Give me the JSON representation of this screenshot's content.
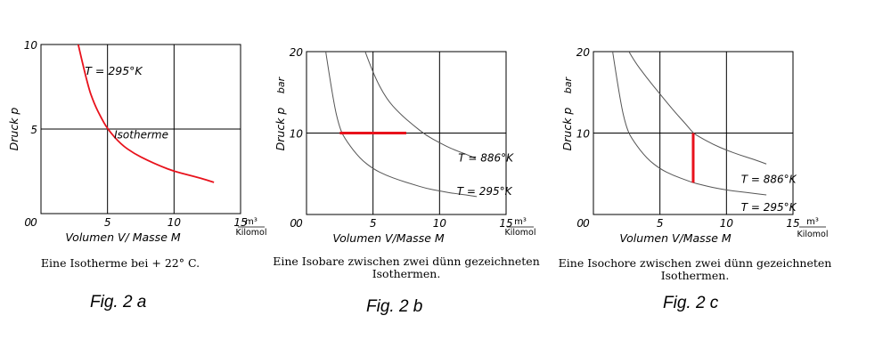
{
  "colors": {
    "highlight": "#e8121c",
    "thin_curve": "#555555",
    "axis": "#000000"
  },
  "chart_data": [
    {
      "type": "line",
      "title": "",
      "xlabel": "Volumen V/ Masse M",
      "ylabel": "Druck p",
      "unit": {
        "numerator": "m³",
        "denominator": "Kilomol"
      },
      "xlim": [
        0,
        15
      ],
      "ylim": [
        0,
        10
      ],
      "xticks": [
        "0",
        "5",
        "10",
        "15"
      ],
      "yticks": [
        "10",
        "5",
        "0"
      ],
      "grid": true,
      "series": [
        {
          "name": "Isotherme",
          "color": "#e8121c",
          "label": "T = 295°K",
          "x": [
            2.8,
            3.5,
            4.0,
            4.5,
            5.0,
            6.0,
            7.0,
            8.0,
            9.0,
            10.0,
            11.0,
            12.0,
            13.0
          ],
          "y": [
            10.0,
            7.6,
            6.5,
            5.7,
            5.0,
            4.1,
            3.55,
            3.15,
            2.8,
            2.5,
            2.3,
            2.1,
            1.85
          ]
        }
      ],
      "annotations": [
        "T = 295°K",
        "Isotherme"
      ]
    },
    {
      "type": "line",
      "title": "",
      "xlabel": "Volumen V/Masse M",
      "ylabel": "Druck p",
      "yunit": "bar",
      "unit": {
        "numerator": "m³",
        "denominator": "Kilomol"
      },
      "xlim": [
        0,
        15
      ],
      "ylim": [
        0,
        20
      ],
      "xticks": [
        "0",
        "5",
        "10",
        "15"
      ],
      "yticks": [
        "20",
        "10",
        "0"
      ],
      "grid": true,
      "series": [
        {
          "name": "T = 886°K",
          "x": [
            4.3,
            5.0,
            6.0,
            7.0,
            8.0,
            9.0,
            10.0,
            11.0,
            12.0,
            12.7
          ],
          "y": [
            20.5,
            17.3,
            14.2,
            12.4,
            11.0,
            9.7,
            8.8,
            8.0,
            7.4,
            6.9
          ]
        },
        {
          "name": "T = 295°K",
          "x": [
            1.4,
            2.0,
            2.5,
            3.0,
            4.0,
            5.0,
            6.0,
            7.0,
            8.0,
            9.0,
            10.0,
            11.0,
            12.0,
            12.8
          ],
          "y": [
            20.5,
            14.0,
            10.5,
            9.0,
            6.9,
            5.6,
            4.8,
            4.2,
            3.7,
            3.2,
            2.9,
            2.6,
            2.4,
            2.2
          ]
        },
        {
          "name": "Isobare",
          "color": "#e8121c",
          "x": [
            2.5,
            7.5
          ],
          "y": [
            10,
            10
          ]
        }
      ],
      "annotations": [
        "T = 886°K",
        "T = 295°K"
      ]
    },
    {
      "type": "line",
      "title": "",
      "xlabel": "Volumen V/Masse M",
      "ylabel": "Druck p",
      "yunit": "bar",
      "unit": {
        "numerator": "m³",
        "denominator": "Kilomol"
      },
      "xlim": [
        0,
        15
      ],
      "ylim": [
        0,
        20
      ],
      "xticks": [
        "0",
        "5",
        "10",
        "15"
      ],
      "yticks": [
        "20",
        "10",
        "0"
      ],
      "grid": true,
      "series": [
        {
          "name": "T = 886°K",
          "x": [
            2.5,
            3.0,
            4.0,
            5.0,
            6.0,
            7.0,
            7.5,
            8.0,
            9.0,
            10.0,
            11.0,
            12.0,
            13.0
          ],
          "y": [
            20.5,
            19.0,
            16.8,
            14.8,
            12.8,
            11.0,
            10.0,
            9.5,
            8.6,
            7.9,
            7.3,
            6.8,
            6.2
          ]
        },
        {
          "name": "T = 295°K",
          "x": [
            1.4,
            2.0,
            2.5,
            3.0,
            4.0,
            5.0,
            6.0,
            7.0,
            7.5,
            8.0,
            9.0,
            10.0,
            11.0,
            12.0,
            13.0
          ],
          "y": [
            20.5,
            14.0,
            10.5,
            9.0,
            6.9,
            5.6,
            4.8,
            4.2,
            3.9,
            3.7,
            3.3,
            3.0,
            2.8,
            2.6,
            2.4
          ]
        },
        {
          "name": "Isochore",
          "color": "#e8121c",
          "x": [
            7.5,
            7.5
          ],
          "y": [
            10,
            3.9
          ]
        }
      ],
      "annotations": [
        "T = 886°K",
        "T = 295°K"
      ]
    }
  ],
  "captions": {
    "a": "Eine Isotherme bei + 22° C.",
    "b_line1": "Eine Isobare zwischen zwei dünn gezeichneten",
    "b_line2": "Isothermen.",
    "c_line1": "Eine Isochore zwischen zwei dünn gezeichneten",
    "c_line2": "Isothermen."
  },
  "fig_labels": {
    "a": "Fig. 2 a",
    "b": "Fig. 2 b",
    "c": "Fig. 2 c"
  }
}
